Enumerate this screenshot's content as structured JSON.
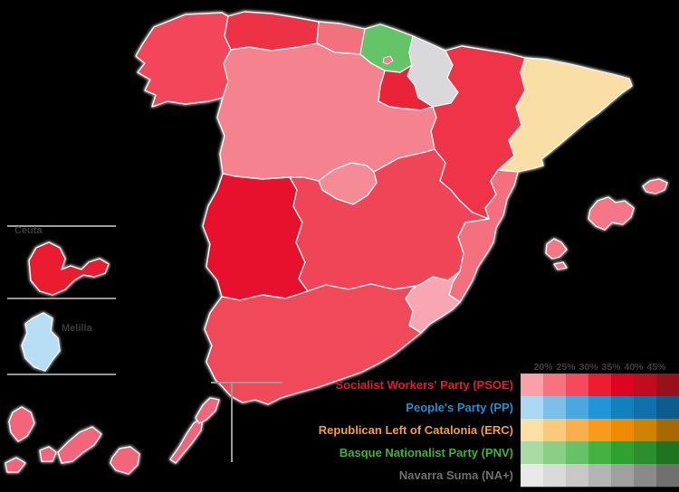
{
  "legend": {
    "scale_labels": [
      "20%",
      "25%",
      "30%",
      "35%",
      "40%",
      "45%"
    ],
    "parties": [
      {
        "id": "psoe",
        "label": "Socialist Workers' Party (PSOE)",
        "text_color": "#e8192e",
        "swatches": [
          "#f9a0aa",
          "#f8717f",
          "#f4495f",
          "#ee1c30",
          "#dc0420",
          "#c10b1e",
          "#97101a"
        ]
      },
      {
        "id": "pp",
        "label": "People's Party (PP)",
        "text_color": "#1e90d4",
        "swatches": [
          "#a9d7f4",
          "#7cc0ea",
          "#4aa8e0",
          "#2196d6",
          "#1380be",
          "#1070ae",
          "#0e5b90"
        ]
      },
      {
        "id": "erc",
        "label": "Republican Left of Catalonia (ERC)",
        "text_color": "#f89c26",
        "swatches": [
          "#fcdfa4",
          "#fbc97d",
          "#f9b04b",
          "#f89b1d",
          "#ee8b00",
          "#cf8200",
          "#a86a00"
        ]
      },
      {
        "id": "pnv",
        "label": "Basque Nationalist Party (PNV)",
        "text_color": "#3db33b",
        "swatches": [
          "#aadba6",
          "#8bcf85",
          "#67c167",
          "#44b242",
          "#30a030",
          "#2c8e2c",
          "#20741f"
        ]
      },
      {
        "id": "na-plus",
        "label": "Navarra Suma (NA+)",
        "text_color": "#6f6f6f",
        "swatches": [
          "#e9e9e9",
          "#dadada",
          "#c8c8c8",
          "#b4b4b4",
          "#a0a0a0",
          "#8a8a8a",
          "#707070"
        ]
      }
    ]
  },
  "insets": {
    "ceuta_label": "Ceuta",
    "melilla_label": "Melilla"
  },
  "map_colors": {
    "galicia": "#f4465a",
    "asturias": "#ee3246",
    "cantabria": "#f3707f",
    "basque_country": "#63c468",
    "trevino_enclave": "#f5828f",
    "navarre": "#d9d9db",
    "la_rioja": "#ea2438",
    "aragon": "#ef3449",
    "catalonia": "#f9dfa6",
    "castile_leon": "#f5828f",
    "madrid": "#f58b97",
    "extremadura": "#e8112d",
    "castilla_la_mancha": "#f04556",
    "valencia": "#f4707e",
    "murcia": "#f7a6b2",
    "andalusia": "#f04a5a",
    "balearic_islands": "#f57687",
    "canary_islands": "#f3657a",
    "ceuta": "#ec1c30",
    "melilla": "#b8def5"
  },
  "line_colors": {
    "inset_line": "#9a9a9a"
  }
}
